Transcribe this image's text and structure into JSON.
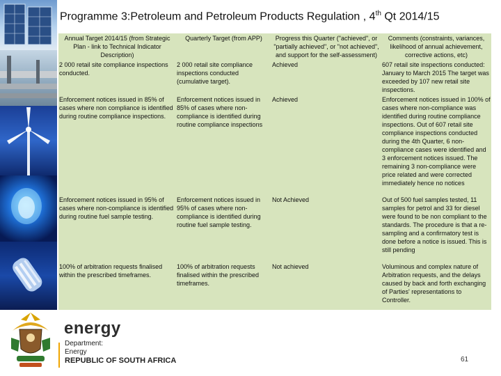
{
  "title": {
    "prefix": "Programme 3",
    "main": ":Petroleum and Petroleum Products Regulation , 4",
    "sup": "th",
    "suffix": " Qt 2014/15"
  },
  "table": {
    "headers": [
      "Annual Target 2014/15 (from Strategic Plan - link to Technical Indicator Description)",
      "Quarterly Target (from APP)",
      "Progress this Quarter (\"achieved\", or \"partially achieved\", or \"not achieved\", and support for the self-assessment)",
      "Comments (constraints, variances, likelihood of annual achievement, corrective actions, etc)"
    ],
    "rows": [
      [
        "2 000 retail site compliance inspections conducted.",
        "2 000 retail site compliance inspections conducted (cumulative target).",
        "Achieved",
        "607 retail site inspections conducted: January to March 2015 The target was exceeded by 107 new retail site inspections."
      ],
      [
        "Enforcement notices issued in 85% of cases where non compliance is identified during routine compliance inspections.",
        "Enforcement notices issued in 85% of cases where non-compliance is identified during routine compliance inspections",
        "Achieved",
        "Enforcement notices issued in 100% of cases where non-compliance was identified during routine compliance inspections. Out of 607 retail site compliance inspections conducted during the 4th Quarter, 6 non-compliance cases were identified and 3 enforcement notices issued. The remaining 3 non-compliance were price related and were corrected immediately hence no notices"
      ],
      [
        "Enforcement notices issued in 95% of cases where non-compliance is identified during routine fuel sample testing.",
        "Enforcement notices issued in 95% of cases where non-compliance is identified during routine fuel sample testing.",
        "Not Achieved",
        "Out of 500 fuel samples tested, 11 samples for petrol and 33 for diesel were found to be non compliant to the standards. The procedure is that a re-sampling and a confirmatory test is done before a notice is issued. This is still pending"
      ],
      [
        "100% of arbitration requests finalised within the prescribed timeframes.",
        "100% of arbitration requests finalised within the prescribed timeframes.",
        "Not achieved",
        "Voluminous and complex nature of Arbitration requests, and the delays caused by back and forth exchanging of Parties' representations to Controller."
      ]
    ]
  },
  "footer": {
    "brand": "energy",
    "department": "Department:",
    "unit": "Energy",
    "country": "REPUBLIC OF SOUTH AFRICA",
    "page_number": "61"
  },
  "colors": {
    "table_bg": "#d7e4bd",
    "accent": "#f0a500"
  }
}
